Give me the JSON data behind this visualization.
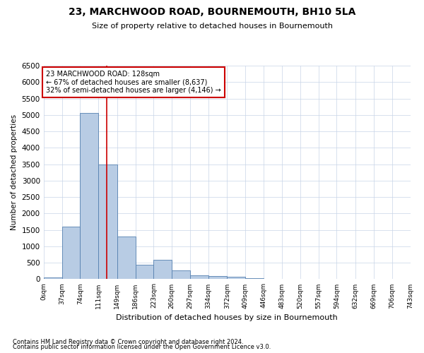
{
  "title": "23, MARCHWOOD ROAD, BOURNEMOUTH, BH10 5LA",
  "subtitle": "Size of property relative to detached houses in Bournemouth",
  "xlabel": "Distribution of detached houses by size in Bournemouth",
  "ylabel": "Number of detached properties",
  "footer1": "Contains HM Land Registry data © Crown copyright and database right 2024.",
  "footer2": "Contains public sector information licensed under the Open Government Licence v3.0.",
  "annotation_line1": "23 MARCHWOOD ROAD: 128sqm",
  "annotation_line2": "← 67% of detached houses are smaller (8,637)",
  "annotation_line3": "32% of semi-detached houses are larger (4,146) →",
  "property_size": 128,
  "bar_color": "#b8cce4",
  "bar_edge_color": "#5580b0",
  "red_line_color": "#cc0000",
  "annotation_box_color": "#cc0000",
  "grid_color": "#c8d4e8",
  "background_color": "#ffffff",
  "bin_edges": [
    0,
    37,
    74,
    111,
    149,
    186,
    223,
    260,
    297,
    334,
    372,
    409,
    446,
    483,
    520,
    557,
    594,
    632,
    669,
    706,
    743
  ],
  "bin_labels": [
    "0sqm",
    "37sqm",
    "74sqm",
    "111sqm",
    "149sqm",
    "186sqm",
    "223sqm",
    "260sqm",
    "297sqm",
    "334sqm",
    "372sqm",
    "409sqm",
    "446sqm",
    "483sqm",
    "520sqm",
    "557sqm",
    "594sqm",
    "632sqm",
    "669sqm",
    "706sqm",
    "743sqm"
  ],
  "bar_heights": [
    50,
    1600,
    5050,
    3500,
    1300,
    430,
    600,
    270,
    110,
    90,
    65,
    30,
    0,
    0,
    0,
    0,
    0,
    0,
    0,
    0
  ],
  "ylim": [
    0,
    6500
  ],
  "yticks": [
    0,
    500,
    1000,
    1500,
    2000,
    2500,
    3000,
    3500,
    4000,
    4500,
    5000,
    5500,
    6000,
    6500
  ]
}
